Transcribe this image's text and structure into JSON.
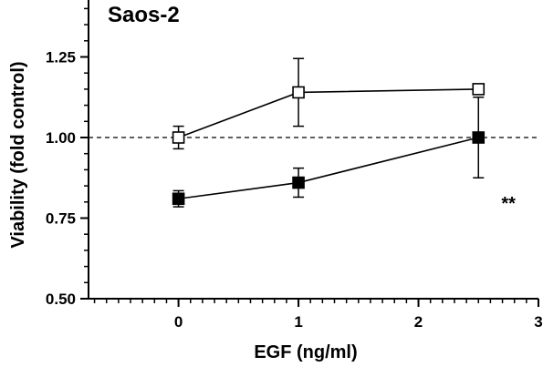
{
  "chart_data": {
    "type": "line",
    "title": "Saos-2",
    "xlabel": "EGF (ng/ml)",
    "ylabel": "Viability (fold control)",
    "xlim": [
      -0.75,
      3
    ],
    "ylim": [
      0.5,
      1.5
    ],
    "x_ticks": [
      0,
      1,
      2,
      3
    ],
    "x_tick_labels": [
      "0",
      "1",
      "2",
      "3"
    ],
    "y_ticks": [
      0.5,
      0.75,
      1.0,
      1.25,
      1.5
    ],
    "y_tick_labels": [
      "0.50",
      "0.75",
      "1.00",
      "1.25",
      "1.50"
    ],
    "reference_line": {
      "y": 1.0,
      "style": "dashed"
    },
    "grid": false,
    "legend": "none",
    "series": [
      {
        "marker": "open-square",
        "color": "#000000",
        "x": [
          0,
          1,
          2.5
        ],
        "y": [
          1.0,
          1.14,
          1.15
        ],
        "err": [
          0.035,
          0.105,
          0.015
        ]
      },
      {
        "marker": "filled-square",
        "color": "#000000",
        "x": [
          0,
          1,
          2.5
        ],
        "y": [
          0.81,
          0.86,
          1.0
        ],
        "err": [
          0.025,
          0.045,
          0.125
        ]
      }
    ],
    "annotations": [
      {
        "text": "**",
        "x": 2.75,
        "y": 0.8
      }
    ]
  }
}
